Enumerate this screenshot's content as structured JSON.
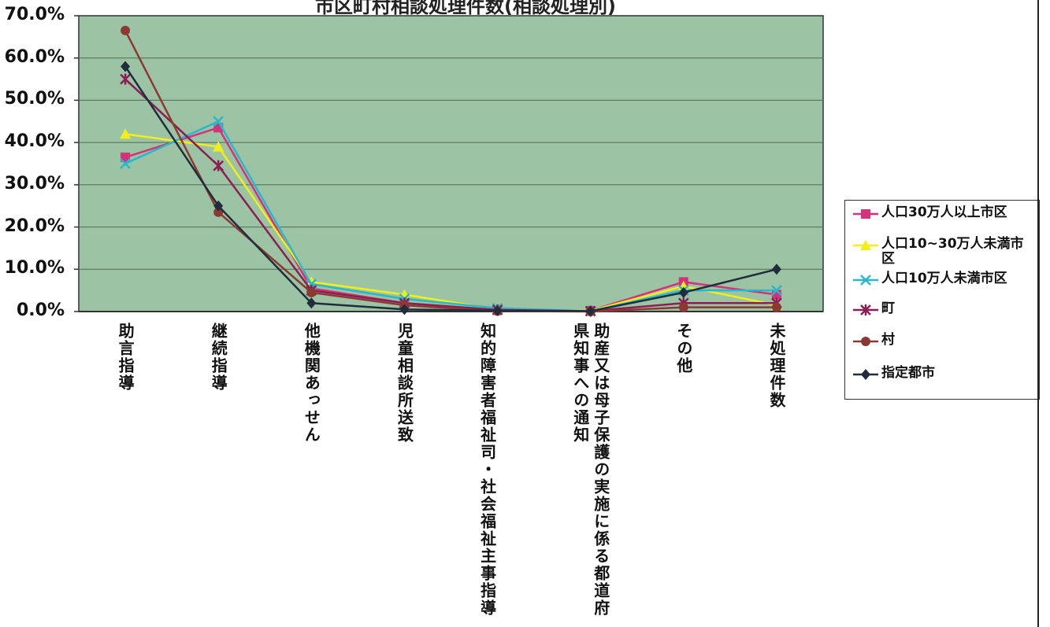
{
  "chart_data": {
    "type": "line",
    "title": "市区町村相談処理件数(相談処理別)",
    "ylim": [
      0,
      70
    ],
    "yticks": [
      "70.0%",
      "60.0%",
      "50.0%",
      "40.0%",
      "30.0%",
      "20.0%",
      "10.0%",
      "0.0%"
    ],
    "grid": true,
    "legend_position": "right",
    "plot_background": "#9cc4a4",
    "categories": [
      "助言指導",
      "継続指導",
      "他機関あっせん",
      "児童相談所送致",
      "知的障害者福祉司・社会福祉主事指導",
      "助産又は母子保護の実施に係る都道府県知事への通知",
      "その他",
      "未処理件数"
    ],
    "series": [
      {
        "name": "人口30万人以上市区",
        "color": "#d6317b",
        "marker": "square",
        "values": [
          36.5,
          43.5,
          5.5,
          2.0,
          0.3,
          0.2,
          7.0,
          4.0
        ]
      },
      {
        "name": "人口10~30万人未満市区",
        "color": "#f2ee1c",
        "marker": "triangle",
        "values": [
          42.0,
          39.0,
          7.0,
          4.0,
          0.5,
          0.2,
          6.0,
          1.5
        ]
      },
      {
        "name": "人口10万人未満市区",
        "color": "#2ab7c9",
        "marker": "x",
        "values": [
          35.0,
          45.0,
          6.5,
          3.0,
          0.8,
          0.1,
          5.0,
          5.0
        ]
      },
      {
        "name": "町",
        "color": "#8a1f55",
        "marker": "star",
        "values": [
          55.0,
          34.5,
          5.0,
          2.0,
          0.4,
          0.1,
          2.0,
          2.0
        ]
      },
      {
        "name": "村",
        "color": "#8b3a33",
        "marker": "circle",
        "values": [
          66.5,
          23.5,
          4.5,
          1.5,
          0.1,
          0.0,
          1.0,
          1.0
        ]
      },
      {
        "name": "指定都市",
        "color": "#1f2d3d",
        "marker": "diamond",
        "values": [
          58.0,
          25.0,
          2.0,
          0.5,
          0.2,
          0.1,
          4.5,
          10.0
        ]
      }
    ]
  }
}
